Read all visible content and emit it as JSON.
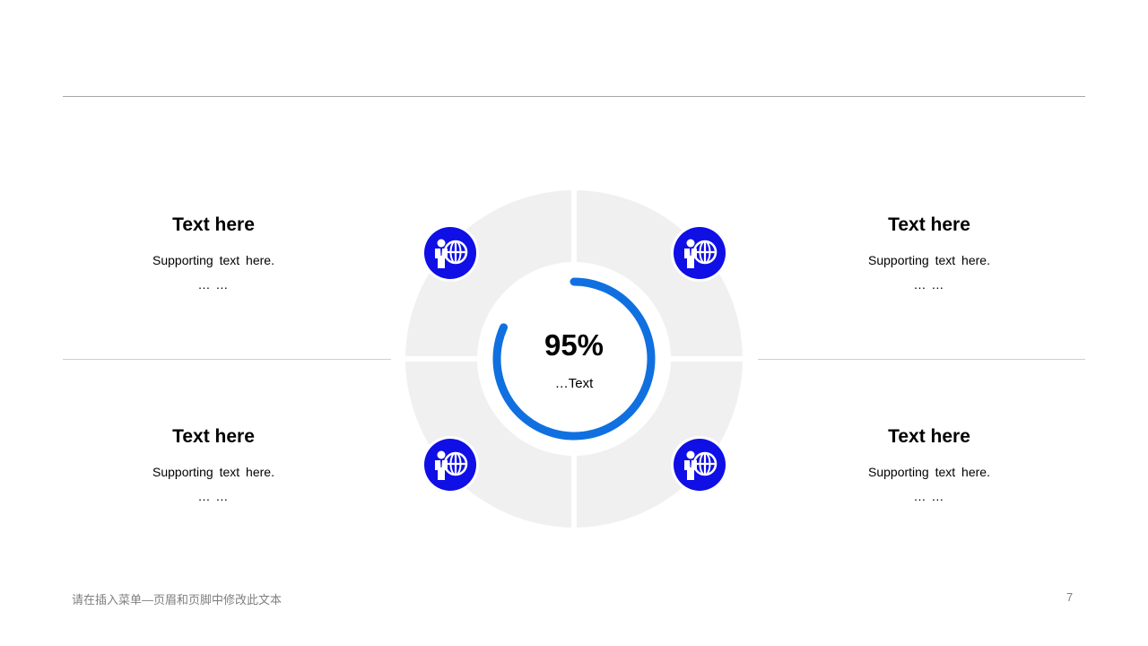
{
  "blocks": [
    {
      "title": "Text here",
      "support": "Supporting text here.",
      "dots": "… …"
    },
    {
      "title": "Text here",
      "support": "Supporting text here.",
      "dots": "… …"
    },
    {
      "title": "Text here",
      "support": "Supporting text here.",
      "dots": "… …"
    },
    {
      "title": "Text here",
      "support": "Supporting text here.",
      "dots": "… …"
    }
  ],
  "center": {
    "value": "95%",
    "label": "…Text",
    "progress": 0.95
  },
  "icons": [
    "person-globe-icon",
    "person-globe-icon",
    "person-globe-icon",
    "person-globe-icon"
  ],
  "colors": {
    "accent": "#0f0fe6",
    "ring": "#1070e0",
    "segment": "#f0f0f0"
  },
  "footer": {
    "text": "请在插入菜单—页眉和页脚中修改此文本",
    "page": "7"
  }
}
